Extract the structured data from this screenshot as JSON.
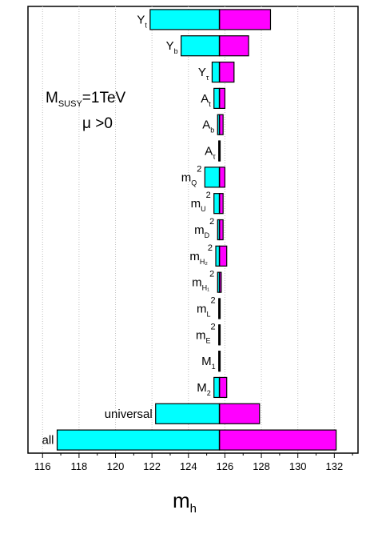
{
  "chart_data": {
    "type": "bar",
    "orientation": "horizontal-tornado",
    "central_value": 125.7,
    "xlim": [
      115.2,
      133.3
    ],
    "xticks": [
      116,
      118,
      120,
      122,
      124,
      126,
      128,
      130,
      132
    ],
    "xtick_labels": [
      "116",
      "118",
      "120",
      "122",
      "124",
      "126",
      "128",
      "130",
      "132"
    ],
    "xlabel": {
      "main": "m",
      "sub": "h"
    },
    "grid": "vertical-dotted",
    "colors": {
      "low": "#00ffff",
      "high": "#ff00ff",
      "edge": "#000000"
    },
    "annotation": {
      "line1": {
        "main": "M",
        "sub": "SUSY",
        "rest": "=1TeV"
      },
      "line2": "μ >0"
    },
    "categories": [
      {
        "main": "Y",
        "sub": "t",
        "sup": "",
        "low": 121.9,
        "high": 128.5
      },
      {
        "main": "Y",
        "sub": "b",
        "sup": "",
        "low": 123.6,
        "high": 127.3
      },
      {
        "main": "Y",
        "sub": "τ",
        "sup": "",
        "low": 125.3,
        "high": 126.5
      },
      {
        "main": "A",
        "sub": "t",
        "sup": "",
        "low": 125.4,
        "high": 126.0
      },
      {
        "main": "A",
        "sub": "b",
        "sup": "",
        "low": 125.6,
        "high": 125.9
      },
      {
        "main": "A",
        "sub": "τ",
        "sup": "",
        "low": 125.66,
        "high": 125.74
      },
      {
        "main": "m",
        "sub": "Q",
        "sup": "2",
        "low": 124.9,
        "high": 126.0
      },
      {
        "main": "m",
        "sub": "U",
        "sup": "2",
        "low": 125.4,
        "high": 125.9
      },
      {
        "main": "m",
        "sub": "D",
        "sup": "2",
        "low": 125.6,
        "high": 125.9
      },
      {
        "main": "m",
        "sub": "H₂",
        "sup": "2",
        "low": 125.5,
        "high": 126.1
      },
      {
        "main": "m",
        "sub": "H₁",
        "sup": "2",
        "low": 125.6,
        "high": 125.8
      },
      {
        "main": "m",
        "sub": "L",
        "sup": "2",
        "low": 125.66,
        "high": 125.74
      },
      {
        "main": "m",
        "sub": "E",
        "sup": "2",
        "low": 125.66,
        "high": 125.74
      },
      {
        "main": "M",
        "sub": "1",
        "sup": "",
        "low": 125.66,
        "high": 125.74
      },
      {
        "main": "M",
        "sub": "2",
        "sup": "",
        "low": 125.4,
        "high": 126.1
      },
      {
        "main": "universal",
        "sub": "",
        "sup": "",
        "low": 122.2,
        "high": 127.9
      },
      {
        "main": "all",
        "sub": "",
        "sup": "",
        "low": 116.8,
        "high": 132.1
      }
    ]
  }
}
